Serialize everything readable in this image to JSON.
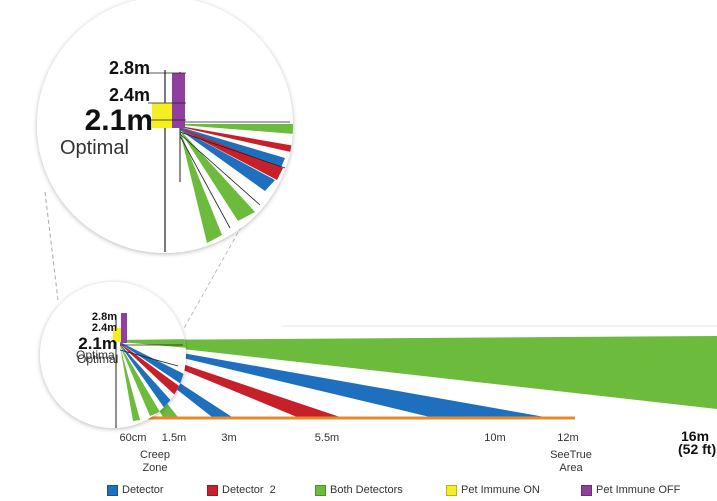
{
  "colors": {
    "detector": "#1f6fbf",
    "detector_2": "#c8202b",
    "both_detectors": "#6cbb3c",
    "pet_immune_on": "#f5ee22",
    "pet_immune_off": "#8e3fa0",
    "floor_line": "#e88a2c"
  },
  "heights": {
    "h28": "2.8m",
    "h24": "2.4m",
    "h21": "2.1m",
    "optimal": "Optimal"
  },
  "distances": {
    "d60cm": "60cm",
    "d15m": "1.5m",
    "d3m": "3m",
    "d55m": "5.5m",
    "d10m": "10m",
    "d12m": "12m",
    "d16m": "16m",
    "d52ft": "(52 ft)"
  },
  "annotations": {
    "creep_line1": "Creep",
    "creep_line2": "Zone",
    "seetrue_line1": "SeeTrue",
    "seetrue_line2": "Area"
  },
  "legend": {
    "detector": "Detector",
    "detector_2": "Detector  2",
    "both_detectors": "Both Detectors",
    "pet_immune_on": "Pet Immune ON",
    "pet_immune_off": "Pet Immune OFF"
  }
}
